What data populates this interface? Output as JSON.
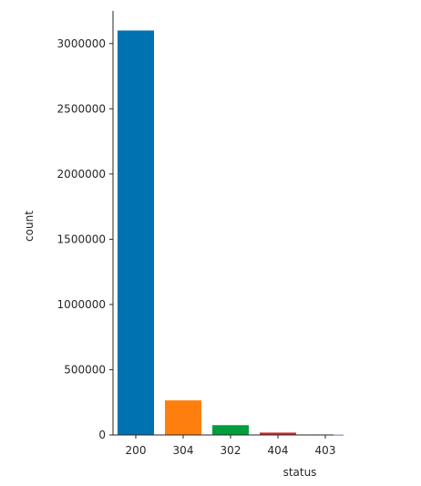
{
  "chart_data": {
    "type": "bar",
    "xlabel": "status",
    "ylabel": "count",
    "categories": [
      "200",
      "304",
      "302",
      "404",
      "403"
    ],
    "values": [
      3100000,
      265000,
      75000,
      18000,
      2000
    ],
    "colors": [
      "#0072b2",
      "#ff7f0e",
      "#009e3f",
      "#d62728",
      "#6a4c93"
    ],
    "ylim": [
      0,
      3250000
    ],
    "yticks": [
      0,
      500000,
      1000000,
      1500000,
      2000000,
      2500000,
      3000000
    ],
    "ytick_labels": [
      "0",
      "500000",
      "1000000",
      "1500000",
      "2000000",
      "2500000",
      "3000000"
    ],
    "grid": false,
    "legend": "none"
  }
}
